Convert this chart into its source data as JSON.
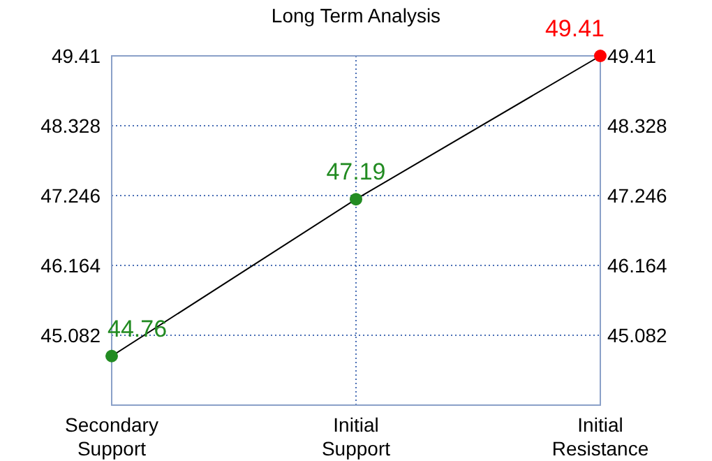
{
  "chart_data": {
    "type": "line",
    "title": "Long Term Analysis",
    "categories": [
      "Secondary\nSupport",
      "Initial\nSupport",
      "Initial\nResistance"
    ],
    "series": [
      {
        "color": "#000000",
        "colors": [
          "#228b22",
          "#228b22",
          "#ff0000"
        ],
        "values": [
          44.76,
          47.19,
          49.41
        ]
      }
    ],
    "ylim": [
      44.0,
      49.41
    ],
    "yticks": [
      45.082,
      46.164,
      47.246,
      48.328,
      49.41
    ],
    "y2lim": [
      44.0,
      49.41
    ],
    "y2ticks": [
      45.082,
      46.164,
      47.246,
      48.328,
      49.41
    ],
    "grid": true,
    "marker": "circle",
    "line_style": "solid",
    "data_labels": true
  }
}
